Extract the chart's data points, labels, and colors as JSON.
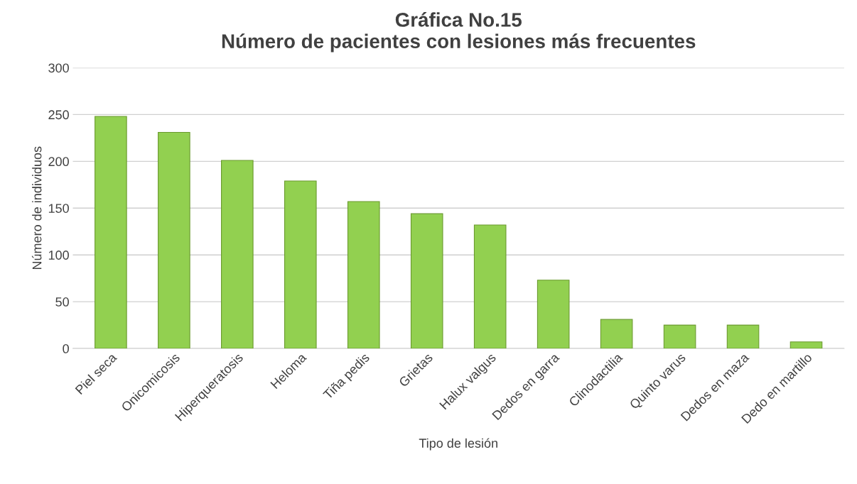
{
  "chart_data": {
    "type": "bar",
    "title": "Gráfica No.15\nNúmero de pacientes con lesiones más frecuentes",
    "xlabel": "Tipo de lesión",
    "ylabel": "Número de individuos",
    "categories": [
      "Piel seca",
      "Onicomicosis",
      "Hiperqueratosis",
      "Heloma",
      "Tiña pedis",
      "Grietas",
      "Halux valgus",
      "Dedos en garra",
      "Clinodactilia",
      "Quinto varus",
      "Dedos en maza",
      "Dedo en martillo"
    ],
    "values": [
      248,
      231,
      201,
      179,
      157,
      144,
      132,
      73,
      31,
      25,
      25,
      7
    ],
    "color": "#92d050",
    "ylim": [
      0,
      300
    ],
    "yticks": [
      0,
      50,
      100,
      150,
      200,
      250,
      300
    ],
    "grid": "y"
  }
}
